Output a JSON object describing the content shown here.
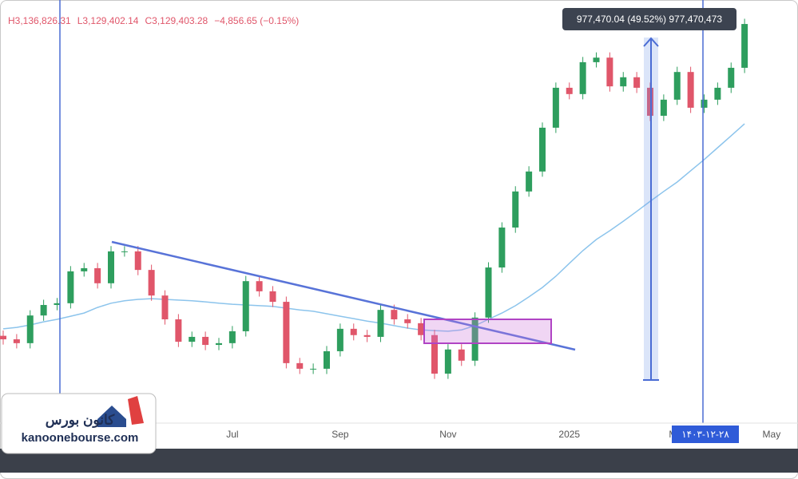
{
  "chart_data": {
    "type": "candlestick",
    "header_values": [
      "H3,136,826.31",
      "L3,129,402.14",
      "C3,129,403.28",
      "−4,856.65 (−0.15%)"
    ],
    "measure_label": "977,470.04 (49.52%) 977,470,473",
    "crosshair_label": "۱۴۰۳-۱۲-۲۸",
    "logo": {
      "name": "کانون بورس",
      "site": "kanoonebourse.com"
    },
    "categories": [
      null,
      null,
      null,
      null,
      null,
      null,
      null,
      null,
      null,
      null,
      null,
      null,
      null,
      null,
      null,
      null,
      null,
      "Jul",
      null,
      null,
      null,
      null,
      null,
      null,
      null,
      "Sep",
      null,
      null,
      null,
      null,
      null,
      null,
      null,
      "Nov",
      null,
      null,
      null,
      null,
      null,
      null,
      null,
      null,
      "2025",
      null,
      null,
      null,
      null,
      null,
      null,
      null,
      "Mar",
      null,
      null,
      null,
      null,
      null,
      null,
      "May"
    ],
    "open": [
      2100000,
      2090000,
      2079000,
      2158000,
      2188000,
      2193000,
      2284000,
      2293000,
      2250000,
      2341000,
      2341000,
      2288000,
      2215000,
      2147000,
      2083000,
      2097000,
      2074000,
      2079000,
      2113000,
      2256000,
      2227000,
      2197000,
      2022000,
      2006000,
      2006000,
      2056000,
      2120000,
      2102000,
      2097000,
      2174000,
      2147000,
      2136000,
      2102000,
      1992000,
      2061000,
      2029000,
      2152000,
      2295000,
      2409000,
      2512000,
      2569000,
      2694000,
      2808000,
      2790000,
      2881000,
      2894000,
      2812000,
      2838000,
      2808000,
      2728000,
      2774000,
      2853000,
      2751000,
      2774000,
      2808000,
      2865000,
      null,
      null
    ],
    "high": [
      2115000,
      2105000,
      2173000,
      2203000,
      2208000,
      2299000,
      2308000,
      2308000,
      2356000,
      2356000,
      2356000,
      2303000,
      2230000,
      2162000,
      2112000,
      2112000,
      2094000,
      2128000,
      2271000,
      2271000,
      2242000,
      2212000,
      2037000,
      2021000,
      2071000,
      2135000,
      2135000,
      2117000,
      2189000,
      2189000,
      2162000,
      2151000,
      2117000,
      2076000,
      2076000,
      2167000,
      2310000,
      2424000,
      2527000,
      2584000,
      2709000,
      2823000,
      2823000,
      2896000,
      2909000,
      2909000,
      2853000,
      2853000,
      2823000,
      2789000,
      2868000,
      2868000,
      2789000,
      2823000,
      2880000,
      3005000,
      null,
      null
    ],
    "low": [
      2075000,
      2064000,
      2064000,
      2143000,
      2173000,
      2178000,
      2269000,
      2235000,
      2235000,
      2326000,
      2273000,
      2200000,
      2132000,
      2068000,
      2068000,
      2059000,
      2059000,
      2064000,
      2098000,
      2212000,
      2182000,
      2007000,
      1991000,
      1991000,
      1991000,
      2041000,
      2087000,
      2082000,
      2082000,
      2132000,
      2121000,
      2087000,
      1977000,
      1977000,
      2014000,
      2014000,
      2137000,
      2280000,
      2394000,
      2497000,
      2554000,
      2679000,
      2775000,
      2775000,
      2866000,
      2797000,
      2797000,
      2793000,
      2713000,
      2713000,
      2759000,
      2736000,
      2736000,
      2759000,
      2793000,
      2850000,
      null,
      null
    ],
    "close": [
      2090000,
      2079000,
      2158000,
      2188000,
      2193000,
      2284000,
      2293000,
      2250000,
      2341000,
      2341000,
      2288000,
      2215000,
      2147000,
      2083000,
      2097000,
      2074000,
      2079000,
      2113000,
      2256000,
      2227000,
      2197000,
      2022000,
      2006000,
      2006000,
      2056000,
      2120000,
      2102000,
      2097000,
      2174000,
      2147000,
      2136000,
      2102000,
      1992000,
      2061000,
      2029000,
      2152000,
      2295000,
      2409000,
      2512000,
      2569000,
      2694000,
      2808000,
      2790000,
      2881000,
      2894000,
      2812000,
      2838000,
      2808000,
      2728000,
      2774000,
      2853000,
      2751000,
      2774000,
      2808000,
      2865000,
      2990000,
      null,
      null
    ],
    "ma_values": [
      2120000,
      2124000,
      2131000,
      2140000,
      2147000,
      2156000,
      2165000,
      2181000,
      2193000,
      2200000,
      2204000,
      2206000,
      2204000,
      2202000,
      2200000,
      2197000,
      2193000,
      2190000,
      2188000,
      2186000,
      2184000,
      2179000,
      2174000,
      2170000,
      2163000,
      2156000,
      2149000,
      2142000,
      2136000,
      2129000,
      2122000,
      2117000,
      2115000,
      2113000,
      2117000,
      2129000,
      2147000,
      2165000,
      2186000,
      2211000,
      2238000,
      2270000,
      2307000,
      2343000,
      2375000,
      2400000,
      2427000,
      2455000,
      2484000,
      2512000,
      2539000,
      2571000,
      2603000,
      2637000,
      2671000,
      2705000,
      null,
      null
    ],
    "up_color": "#2e9e5e",
    "down_color": "#e0566a",
    "ma_color": "#8cc4ec",
    "ylim": [
      1850800,
      3058500
    ]
  }
}
